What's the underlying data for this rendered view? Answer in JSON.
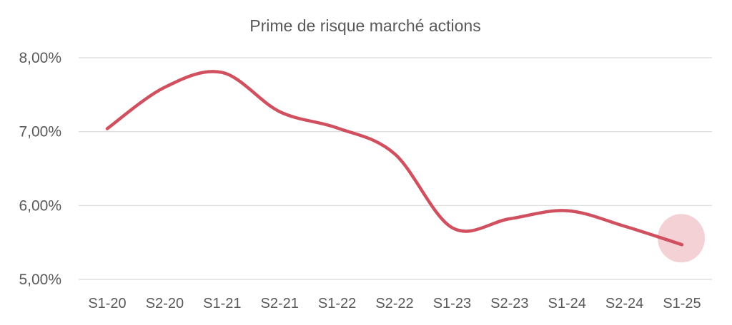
{
  "chart_data": {
    "type": "line",
    "title": "Prime de risque marché actions",
    "xlabel": "",
    "ylabel": "",
    "categories": [
      "S1-20",
      "S2-20",
      "S1-21",
      "S2-21",
      "S1-22",
      "S2-22",
      "S1-23",
      "S2-23",
      "S1-24",
      "S2-24",
      "S1-25"
    ],
    "series": [
      {
        "values": [
          7.04,
          7.6,
          7.8,
          7.27,
          7.05,
          6.7,
          5.7,
          5.82,
          5.93,
          5.72,
          5.47
        ]
      }
    ],
    "ylim": [
      5.0,
      8.0
    ],
    "yticks": [
      8.0,
      7.0,
      6.0,
      5.0
    ],
    "ytick_labels": [
      "8,00%",
      "7,00%",
      "6,00%",
      "5,00%"
    ],
    "grid": true,
    "legend": "none",
    "line_color": "#d1505f",
    "highlight": {
      "category": "S1-25",
      "color": "#f2c9cd"
    }
  }
}
